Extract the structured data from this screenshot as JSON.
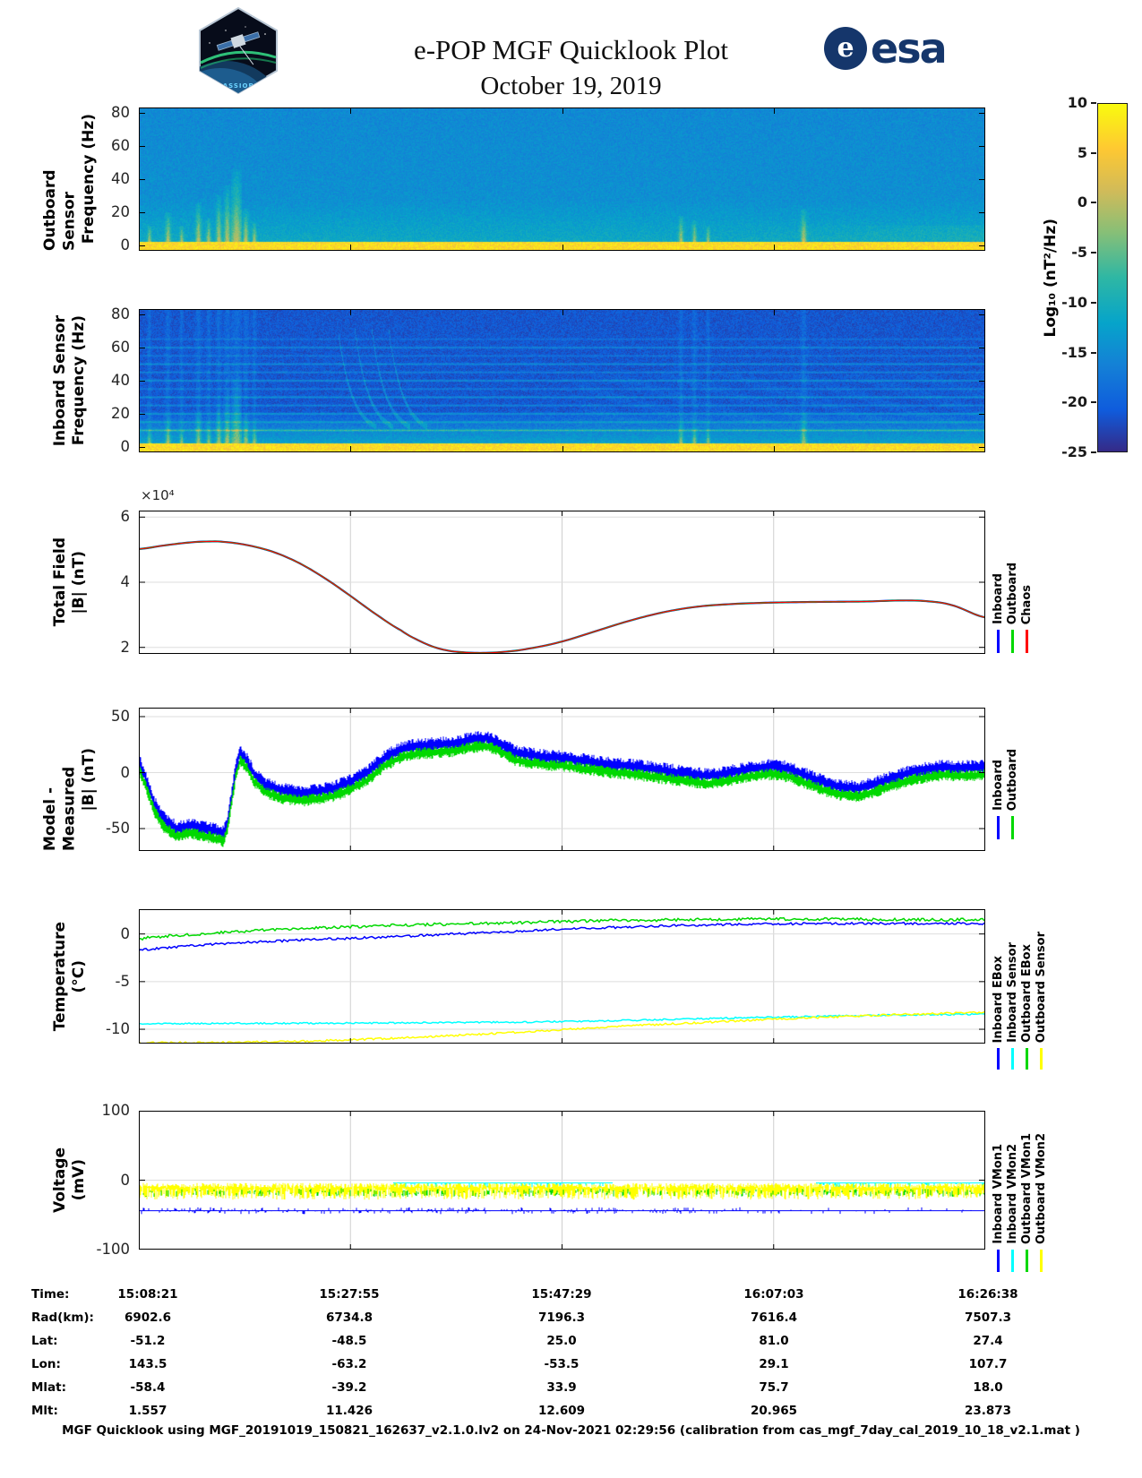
{
  "header": {
    "title": "e-POP MGF Quicklook Plot",
    "date": "October 19, 2019",
    "mission_patch_text": "CASSIOPE",
    "esa_wordmark": "esa",
    "esa_emblem_letter": "e"
  },
  "colorbar": {
    "label": "Log₁₀ (nT²/Hz)",
    "ticks": [
      10,
      5,
      0,
      -5,
      -10,
      -15,
      -20,
      -25
    ],
    "clim": [
      -25,
      10
    ],
    "colormap": "parula"
  },
  "chart_data": [
    {
      "id": "outboard_spectrogram",
      "type": "heatmap",
      "ylabel": [
        "Outboard Sensor",
        "Frequency (Hz)"
      ],
      "yticks": [
        0,
        20,
        40,
        60,
        80
      ],
      "ylim": [
        0,
        80
      ],
      "clim": [
        -25,
        10
      ],
      "colormap": "parula",
      "background_level_db": -14,
      "low_freq_band_level_db": 7,
      "bursts": [
        {
          "x": 0.012,
          "h": 12,
          "w": 1.5
        },
        {
          "x": 0.034,
          "h": 20,
          "w": 2
        },
        {
          "x": 0.05,
          "h": 12,
          "w": 1.5
        },
        {
          "x": 0.07,
          "h": 26,
          "w": 2
        },
        {
          "x": 0.082,
          "h": 16,
          "w": 1.6
        },
        {
          "x": 0.094,
          "h": 30,
          "w": 2
        },
        {
          "x": 0.104,
          "h": 36,
          "w": 2.4
        },
        {
          "x": 0.115,
          "h": 46,
          "w": 4
        },
        {
          "x": 0.126,
          "h": 22,
          "w": 2
        },
        {
          "x": 0.136,
          "h": 14,
          "w": 1.6
        },
        {
          "x": 0.64,
          "h": 18,
          "w": 1.8
        },
        {
          "x": 0.656,
          "h": 15,
          "w": 1.6
        },
        {
          "x": 0.672,
          "h": 12,
          "w": 1.4
        },
        {
          "x": 0.785,
          "h": 22,
          "w": 2.2
        }
      ]
    },
    {
      "id": "inboard_spectrogram",
      "type": "heatmap",
      "ylabel": [
        "Inboard Sensor",
        "Frequency (Hz)"
      ],
      "yticks": [
        0,
        20,
        40,
        60,
        80
      ],
      "ylim": [
        0,
        80
      ],
      "clim": [
        -25,
        10
      ],
      "colormap": "parula",
      "background_level_db": -21,
      "low_freq_band_level_db": 7,
      "harmonic_lines_hz": [
        10,
        15,
        20,
        25,
        30,
        35,
        40,
        45,
        50,
        55,
        60,
        65
      ],
      "harmonic_strengths": [
        9,
        6.5,
        7.5,
        5.5,
        6.5,
        4.5,
        7,
        5,
        6,
        3.5,
        6,
        3
      ],
      "bursts": [
        {
          "x": 0.012,
          "h": 12,
          "w": 1.5
        },
        {
          "x": 0.034,
          "h": 20,
          "w": 2
        },
        {
          "x": 0.05,
          "h": 12,
          "w": 1.5
        },
        {
          "x": 0.07,
          "h": 26,
          "w": 2
        },
        {
          "x": 0.082,
          "h": 16,
          "w": 1.6
        },
        {
          "x": 0.094,
          "h": 30,
          "w": 2
        },
        {
          "x": 0.104,
          "h": 36,
          "w": 2.4
        },
        {
          "x": 0.115,
          "h": 46,
          "w": 4
        },
        {
          "x": 0.126,
          "h": 22,
          "w": 2
        },
        {
          "x": 0.136,
          "h": 14,
          "w": 1.6
        },
        {
          "x": 0.64,
          "h": 18,
          "w": 1.8
        },
        {
          "x": 0.656,
          "h": 15,
          "w": 1.6
        },
        {
          "x": 0.672,
          "h": 12,
          "w": 1.4
        },
        {
          "x": 0.785,
          "h": 22,
          "w": 2.2
        }
      ]
    },
    {
      "id": "total_field",
      "type": "line",
      "ylabel": [
        "Total Field",
        "|B| (nT)"
      ],
      "y_exponent_label": "×10⁴",
      "yticks": [
        2,
        4,
        6
      ],
      "ylim": [
        1.8,
        6.2
      ],
      "legend": [
        {
          "label": "Inboard",
          "color": "#0000ff"
        },
        {
          "label": "Outboard",
          "color": "#00d800"
        },
        {
          "label": "Chaos",
          "color": "#ff0000"
        }
      ],
      "x": [
        0,
        0.03,
        0.06,
        0.08,
        0.1,
        0.13,
        0.16,
        0.19,
        0.22,
        0.25,
        0.28,
        0.31,
        0.33,
        0.35,
        0.37,
        0.4,
        0.43,
        0.46,
        0.5,
        0.54,
        0.58,
        0.62,
        0.66,
        0.7,
        0.74,
        0.78,
        0.82,
        0.86,
        0.9,
        0.93,
        0.96,
        1.0
      ],
      "values_1e4_nT": [
        5.02,
        5.13,
        5.22,
        5.25,
        5.24,
        5.13,
        4.92,
        4.58,
        4.12,
        3.58,
        3.02,
        2.52,
        2.22,
        2.0,
        1.88,
        1.83,
        1.86,
        1.96,
        2.18,
        2.5,
        2.82,
        3.08,
        3.25,
        3.33,
        3.37,
        3.39,
        3.4,
        3.41,
        3.44,
        3.42,
        3.3,
        2.92
      ]
    },
    {
      "id": "model_minus_measured",
      "type": "line",
      "ylabel": [
        "Model - Measured",
        "|B| (nT)"
      ],
      "yticks": [
        -50,
        0,
        50
      ],
      "ylim": [
        -70,
        58
      ],
      "legend": [
        {
          "label": "Inboard",
          "color": "#0000ff"
        },
        {
          "label": "Outboard",
          "color": "#00d800"
        }
      ],
      "x": [
        0,
        0.008,
        0.018,
        0.03,
        0.045,
        0.06,
        0.075,
        0.09,
        0.1,
        0.105,
        0.11,
        0.115,
        0.12,
        0.128,
        0.136,
        0.15,
        0.17,
        0.19,
        0.21,
        0.23,
        0.25,
        0.27,
        0.29,
        0.31,
        0.33,
        0.35,
        0.37,
        0.39,
        0.41,
        0.43,
        0.445,
        0.46,
        0.48,
        0.5,
        0.53,
        0.56,
        0.59,
        0.62,
        0.65,
        0.67,
        0.69,
        0.71,
        0.73,
        0.75,
        0.77,
        0.79,
        0.81,
        0.83,
        0.85,
        0.87,
        0.89,
        0.91,
        0.93,
        0.95,
        0.97,
        1.0
      ],
      "mean_nT": [
        8,
        -8,
        -30,
        -45,
        -53,
        -50,
        -52,
        -55,
        -57,
        -45,
        -22,
        3,
        15,
        8,
        -4,
        -14,
        -19,
        -21,
        -20,
        -17,
        -11,
        -3,
        10,
        18,
        21,
        22,
        23,
        26,
        28,
        22,
        15,
        13,
        11,
        10,
        7,
        4,
        2,
        -1,
        -4,
        -6,
        -4,
        -1,
        1,
        3,
        0,
        -6,
        -12,
        -16,
        -17,
        -13,
        -8,
        -3,
        0,
        2,
        1,
        2
      ],
      "series": [
        {
          "name": "Inboard",
          "color": "#0000ff",
          "offset": 3,
          "noise": 7
        },
        {
          "name": "Outboard",
          "color": "#00d800",
          "offset": -4,
          "noise": 5.5
        }
      ]
    },
    {
      "id": "temperature",
      "type": "line",
      "ylabel": [
        "Temperature",
        "(°C)"
      ],
      "yticks": [
        -10,
        -5,
        0
      ],
      "ylim": [
        -11.5,
        2.6
      ],
      "x": [
        0,
        0.03,
        0.06,
        0.1,
        0.15,
        0.2,
        0.25,
        0.3,
        0.35,
        0.4,
        0.45,
        0.5,
        0.55,
        0.6,
        0.65,
        0.7,
        0.75,
        0.8,
        0.85,
        0.9,
        0.95,
        1.0
      ],
      "series": [
        {
          "name": "Inboard EBox",
          "color": "#0000ff",
          "jitter": 0.12,
          "y": [
            -1.7,
            -1.45,
            -1.25,
            -1.0,
            -0.8,
            -0.6,
            -0.45,
            -0.3,
            -0.1,
            0.1,
            0.3,
            0.5,
            0.65,
            0.8,
            0.9,
            1.0,
            1.05,
            1.1,
            1.1,
            1.1,
            1.1,
            1.1
          ]
        },
        {
          "name": "Inboard Sensor",
          "color": "#00ffff",
          "jitter": 0.08,
          "y": [
            -9.4,
            -9.4,
            -9.4,
            -9.4,
            -9.38,
            -9.36,
            -9.35,
            -9.33,
            -9.3,
            -9.28,
            -9.25,
            -9.2,
            -9.12,
            -9.02,
            -8.92,
            -8.82,
            -8.72,
            -8.64,
            -8.56,
            -8.5,
            -8.46,
            -8.42
          ]
        },
        {
          "name": "Outboard EBox",
          "color": "#00d800",
          "jitter": 0.15,
          "y": [
            -0.5,
            -0.25,
            -0.05,
            0.15,
            0.4,
            0.6,
            0.75,
            0.9,
            1.0,
            1.1,
            1.2,
            1.3,
            1.4,
            1.45,
            1.5,
            1.55,
            1.55,
            1.55,
            1.55,
            1.5,
            1.5,
            1.5
          ]
        },
        {
          "name": "Outboard Sensor",
          "color": "#ffff00",
          "jitter": 0.1,
          "y": [
            -11.4,
            -11.4,
            -11.4,
            -11.38,
            -11.33,
            -11.25,
            -11.1,
            -10.95,
            -10.75,
            -10.55,
            -10.3,
            -10.05,
            -9.8,
            -9.55,
            -9.35,
            -9.15,
            -8.95,
            -8.78,
            -8.6,
            -8.45,
            -8.33,
            -8.22
          ]
        }
      ]
    },
    {
      "id": "voltage",
      "type": "line",
      "ylabel": [
        "Voltage",
        "(mV)"
      ],
      "yticks": [
        -100,
        0,
        100
      ],
      "ylim": [
        -100,
        100
      ],
      "series": [
        {
          "name": "Inboard VMon1",
          "color": "#0000ff",
          "style": "line_spikes",
          "base": -44,
          "spike": 10,
          "density": 0.45
        },
        {
          "name": "Inboard VMon2",
          "color": "#00ffff",
          "style": "segments",
          "base": -4,
          "spike_down": 9,
          "density": 0.3,
          "intervals": [
            [
              0.3,
              0.56
            ],
            [
              0.8,
              1.0
            ]
          ]
        },
        {
          "name": "Outboard VMon1",
          "color": "#00d800",
          "style": "spikes",
          "base": -16,
          "spike_down": 8,
          "spike_up": 5,
          "density": 0.55
        },
        {
          "name": "Outboard VMon2",
          "color": "#ffff00",
          "style": "spikes",
          "base": -11,
          "spike_down": 17,
          "spike_up": 7,
          "density": 0.95
        }
      ]
    }
  ],
  "ephemeris": {
    "rows": [
      {
        "label": "Time:",
        "values": [
          "15:08:21",
          "15:27:55",
          "15:47:29",
          "16:07:03",
          "16:26:38"
        ]
      },
      {
        "label": "Rad(km):",
        "values": [
          "6902.6",
          "6734.8",
          "7196.3",
          "7616.4",
          "7507.3"
        ]
      },
      {
        "label": "Lat:",
        "values": [
          "-51.2",
          "-48.5",
          "25.0",
          "81.0",
          "27.4"
        ]
      },
      {
        "label": "Lon:",
        "values": [
          "143.5",
          "-63.2",
          "-53.5",
          "29.1",
          "107.7"
        ]
      },
      {
        "label": "Mlat:",
        "values": [
          "-58.4",
          "-39.2",
          "33.9",
          "75.7",
          "18.0"
        ]
      },
      {
        "label": "Mlt:",
        "values": [
          "1.557",
          "11.426",
          "12.609",
          "20.965",
          "23.873"
        ]
      }
    ]
  },
  "footer": {
    "note": "MGF Quicklook using MGF_20191019_150821_162637_v2.1.0.lv2 on 24-Nov-2021 02:29:56 (calibration from cas_mgf_7day_cal_2019_10_18_v2.1.mat )"
  }
}
